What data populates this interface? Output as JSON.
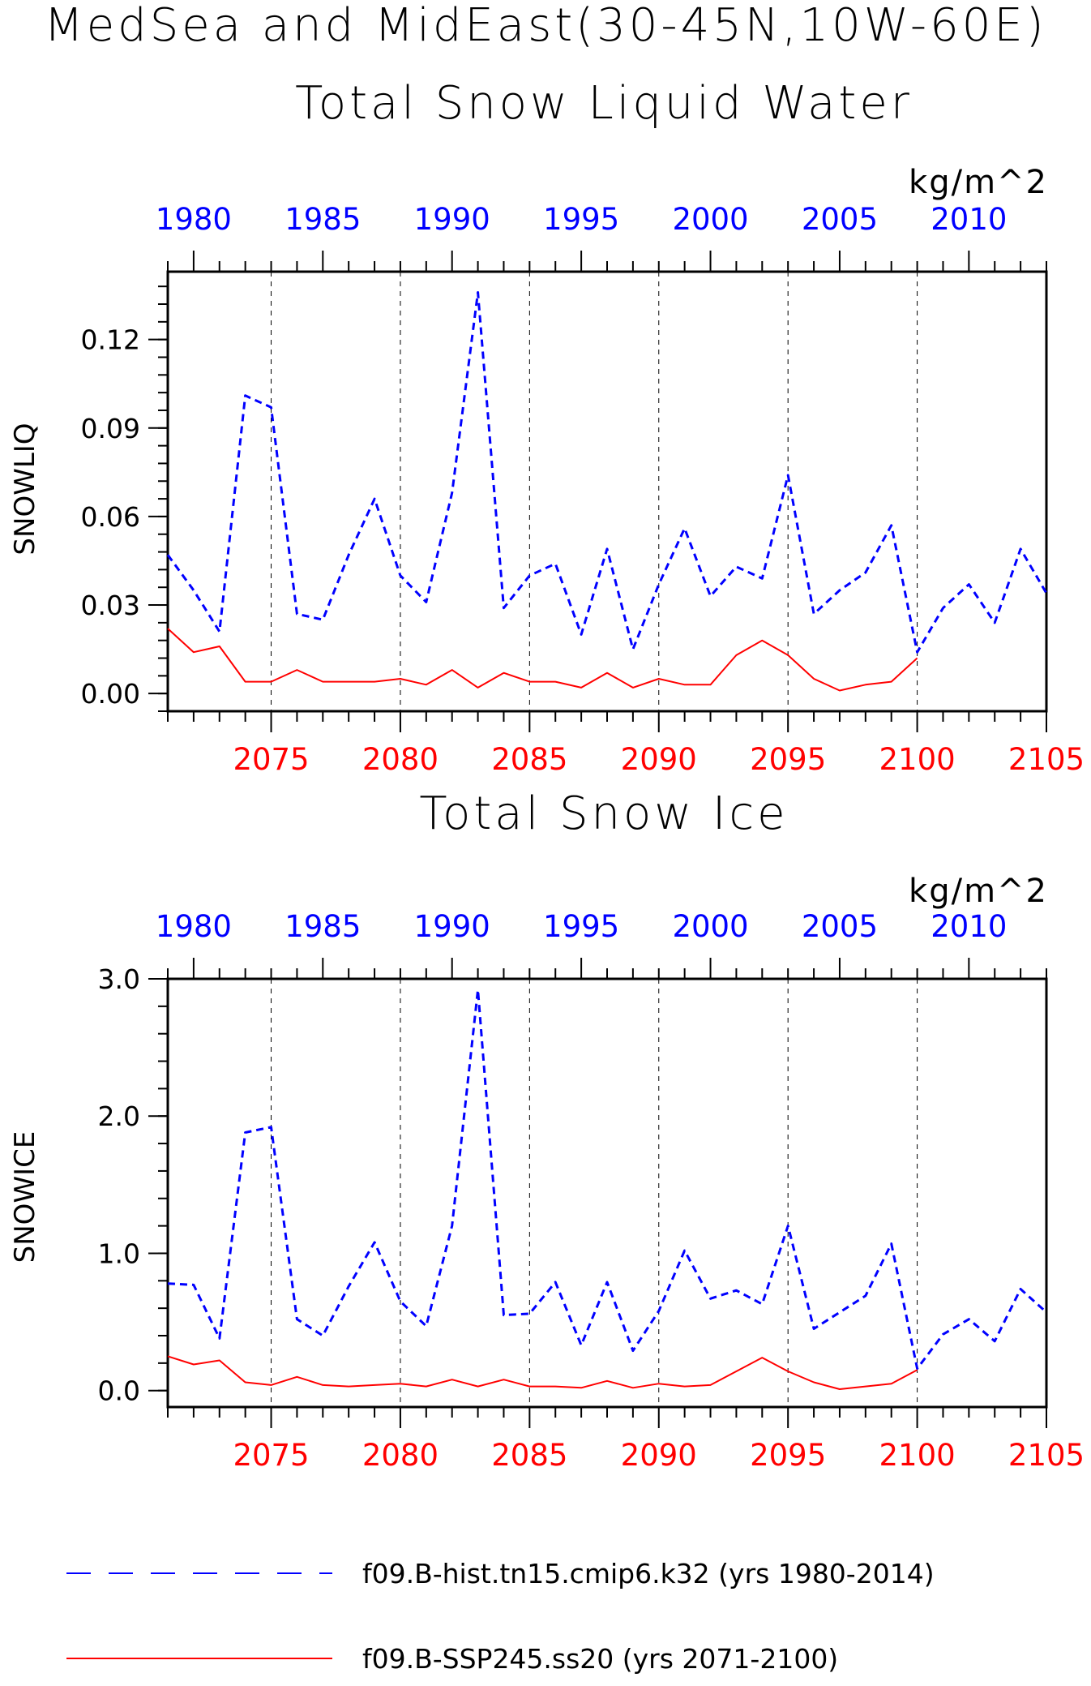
{
  "page": {
    "title_line1": "MedSea and MidEast(30-45N,10W-60E)"
  },
  "colors": {
    "hist": "#0000ff",
    "ssp": "#ff0000",
    "axis": "#000000",
    "grid": "#000000"
  },
  "legend": {
    "items": [
      {
        "label": "f09.B-hist.tn15.cmip6.k32 (yrs 1980-2014)",
        "color": "#0000ff",
        "style": "dashed"
      },
      {
        "label": "f09.B-SSP245.ss20 (yrs 2071-2100)",
        "color": "#ff0000",
        "style": "solid"
      }
    ]
  },
  "chart_data": [
    {
      "type": "line",
      "title": "Total Snow Liquid Water",
      "units": "kg/m^2",
      "ylabel": "SNOWLIQ",
      "ylim": [
        -0.006,
        0.143
      ],
      "yticks": [
        0.0,
        0.03,
        0.06,
        0.09,
        0.12
      ],
      "ytick_labels": [
        "0.00",
        "0.03",
        "0.06",
        "0.09",
        "0.12"
      ],
      "y_minor_step": 0.006,
      "top_axis": {
        "label_color": "#0000ff",
        "range": [
          1979.0,
          2013.0
        ],
        "ticks": [
          1980,
          1985,
          1990,
          1995,
          2000,
          2005,
          2010
        ],
        "minor_step": 1
      },
      "bottom_axis": {
        "label_color": "#ff0000",
        "range": [
          2071.0,
          2105.0
        ],
        "ticks": [
          2075,
          2080,
          2085,
          2090,
          2095,
          2100,
          2105
        ],
        "minor_step": 1
      },
      "grid_x": [
        2075,
        2080,
        2085,
        2090,
        2095,
        2100
      ],
      "series": [
        {
          "name": "f09.B-hist.tn15.cmip6.k32 (yrs 1980-2014)",
          "axis": "top",
          "style": "dashed",
          "x": [
            1979,
            1980,
            1981,
            1982,
            1983,
            1984,
            1985,
            1986,
            1987,
            1988,
            1989,
            1990,
            1991,
            1992,
            1993,
            1994,
            1995,
            1996,
            1997,
            1998,
            1999,
            2000,
            2001,
            2002,
            2003,
            2004,
            2005,
            2006,
            2007,
            2008,
            2009,
            2010,
            2011,
            2012,
            2013
          ],
          "values": [
            0.047,
            0.035,
            0.021,
            0.101,
            0.097,
            0.027,
            0.025,
            0.047,
            0.066,
            0.04,
            0.031,
            0.068,
            0.136,
            0.029,
            0.04,
            0.044,
            0.02,
            0.049,
            0.015,
            0.037,
            0.056,
            0.033,
            0.043,
            0.039,
            0.074,
            0.027,
            0.035,
            0.041,
            0.057,
            0.014,
            0.029,
            0.037,
            0.024,
            0.049,
            0.034
          ]
        },
        {
          "name": "f09.B-SSP245.ss20 (yrs 2071-2100)",
          "axis": "bottom",
          "style": "solid",
          "x": [
            2071,
            2072,
            2073,
            2074,
            2075,
            2076,
            2077,
            2078,
            2079,
            2080,
            2081,
            2082,
            2083,
            2084,
            2085,
            2086,
            2087,
            2088,
            2089,
            2090,
            2091,
            2092,
            2093,
            2094,
            2095,
            2096,
            2097,
            2098,
            2099,
            2100
          ],
          "values": [
            0.022,
            0.014,
            0.016,
            0.004,
            0.004,
            0.008,
            0.004,
            0.004,
            0.004,
            0.005,
            0.003,
            0.008,
            0.002,
            0.007,
            0.004,
            0.004,
            0.002,
            0.007,
            0.002,
            0.005,
            0.003,
            0.003,
            0.013,
            0.018,
            0.013,
            0.005,
            0.001,
            0.003,
            0.004,
            0.012
          ]
        }
      ]
    },
    {
      "type": "line",
      "title": "Total Snow Ice",
      "units": "kg/m^2",
      "ylabel": "SNOWICE",
      "ylim": [
        -0.12,
        3.0
      ],
      "yticks": [
        0.0,
        1.0,
        2.0,
        3.0
      ],
      "ytick_labels": [
        "0.0",
        "1.0",
        "2.0",
        "3.0"
      ],
      "y_minor_step": 0.2,
      "top_axis": {
        "label_color": "#0000ff",
        "range": [
          1979.0,
          2013.0
        ],
        "ticks": [
          1980,
          1985,
          1990,
          1995,
          2000,
          2005,
          2010
        ],
        "minor_step": 1
      },
      "bottom_axis": {
        "label_color": "#ff0000",
        "range": [
          2071.0,
          2105.0
        ],
        "ticks": [
          2075,
          2080,
          2085,
          2090,
          2095,
          2100,
          2105
        ],
        "minor_step": 1
      },
      "grid_x": [
        2075,
        2080,
        2085,
        2090,
        2095,
        2100
      ],
      "series": [
        {
          "name": "f09.B-hist.tn15.cmip6.k32 (yrs 1980-2014)",
          "axis": "top",
          "style": "dashed",
          "x": [
            1979,
            1980,
            1981,
            1982,
            1983,
            1984,
            1985,
            1986,
            1987,
            1988,
            1989,
            1990,
            1991,
            1992,
            1993,
            1994,
            1995,
            1996,
            1997,
            1998,
            1999,
            2000,
            2001,
            2002,
            2003,
            2004,
            2005,
            2006,
            2007,
            2008,
            2009,
            2010,
            2011,
            2012,
            2013
          ],
          "values": [
            0.78,
            0.77,
            0.38,
            1.88,
            1.92,
            0.52,
            0.4,
            0.76,
            1.08,
            0.65,
            0.47,
            1.2,
            2.92,
            0.55,
            0.56,
            0.79,
            0.33,
            0.79,
            0.29,
            0.58,
            1.02,
            0.67,
            0.73,
            0.63,
            1.2,
            0.45,
            0.57,
            0.69,
            1.07,
            0.16,
            0.41,
            0.52,
            0.36,
            0.74,
            0.57
          ]
        },
        {
          "name": "f09.B-SSP245.ss20 (yrs 2071-2100)",
          "axis": "bottom",
          "style": "solid",
          "x": [
            2071,
            2072,
            2073,
            2074,
            2075,
            2076,
            2077,
            2078,
            2079,
            2080,
            2081,
            2082,
            2083,
            2084,
            2085,
            2086,
            2087,
            2088,
            2089,
            2090,
            2091,
            2092,
            2093,
            2094,
            2095,
            2096,
            2097,
            2098,
            2099,
            2100
          ],
          "values": [
            0.25,
            0.19,
            0.22,
            0.06,
            0.04,
            0.1,
            0.04,
            0.03,
            0.04,
            0.05,
            0.03,
            0.08,
            0.03,
            0.08,
            0.03,
            0.03,
            0.02,
            0.07,
            0.02,
            0.05,
            0.03,
            0.04,
            0.14,
            0.24,
            0.14,
            0.06,
            0.01,
            0.03,
            0.05,
            0.15
          ]
        }
      ]
    }
  ]
}
